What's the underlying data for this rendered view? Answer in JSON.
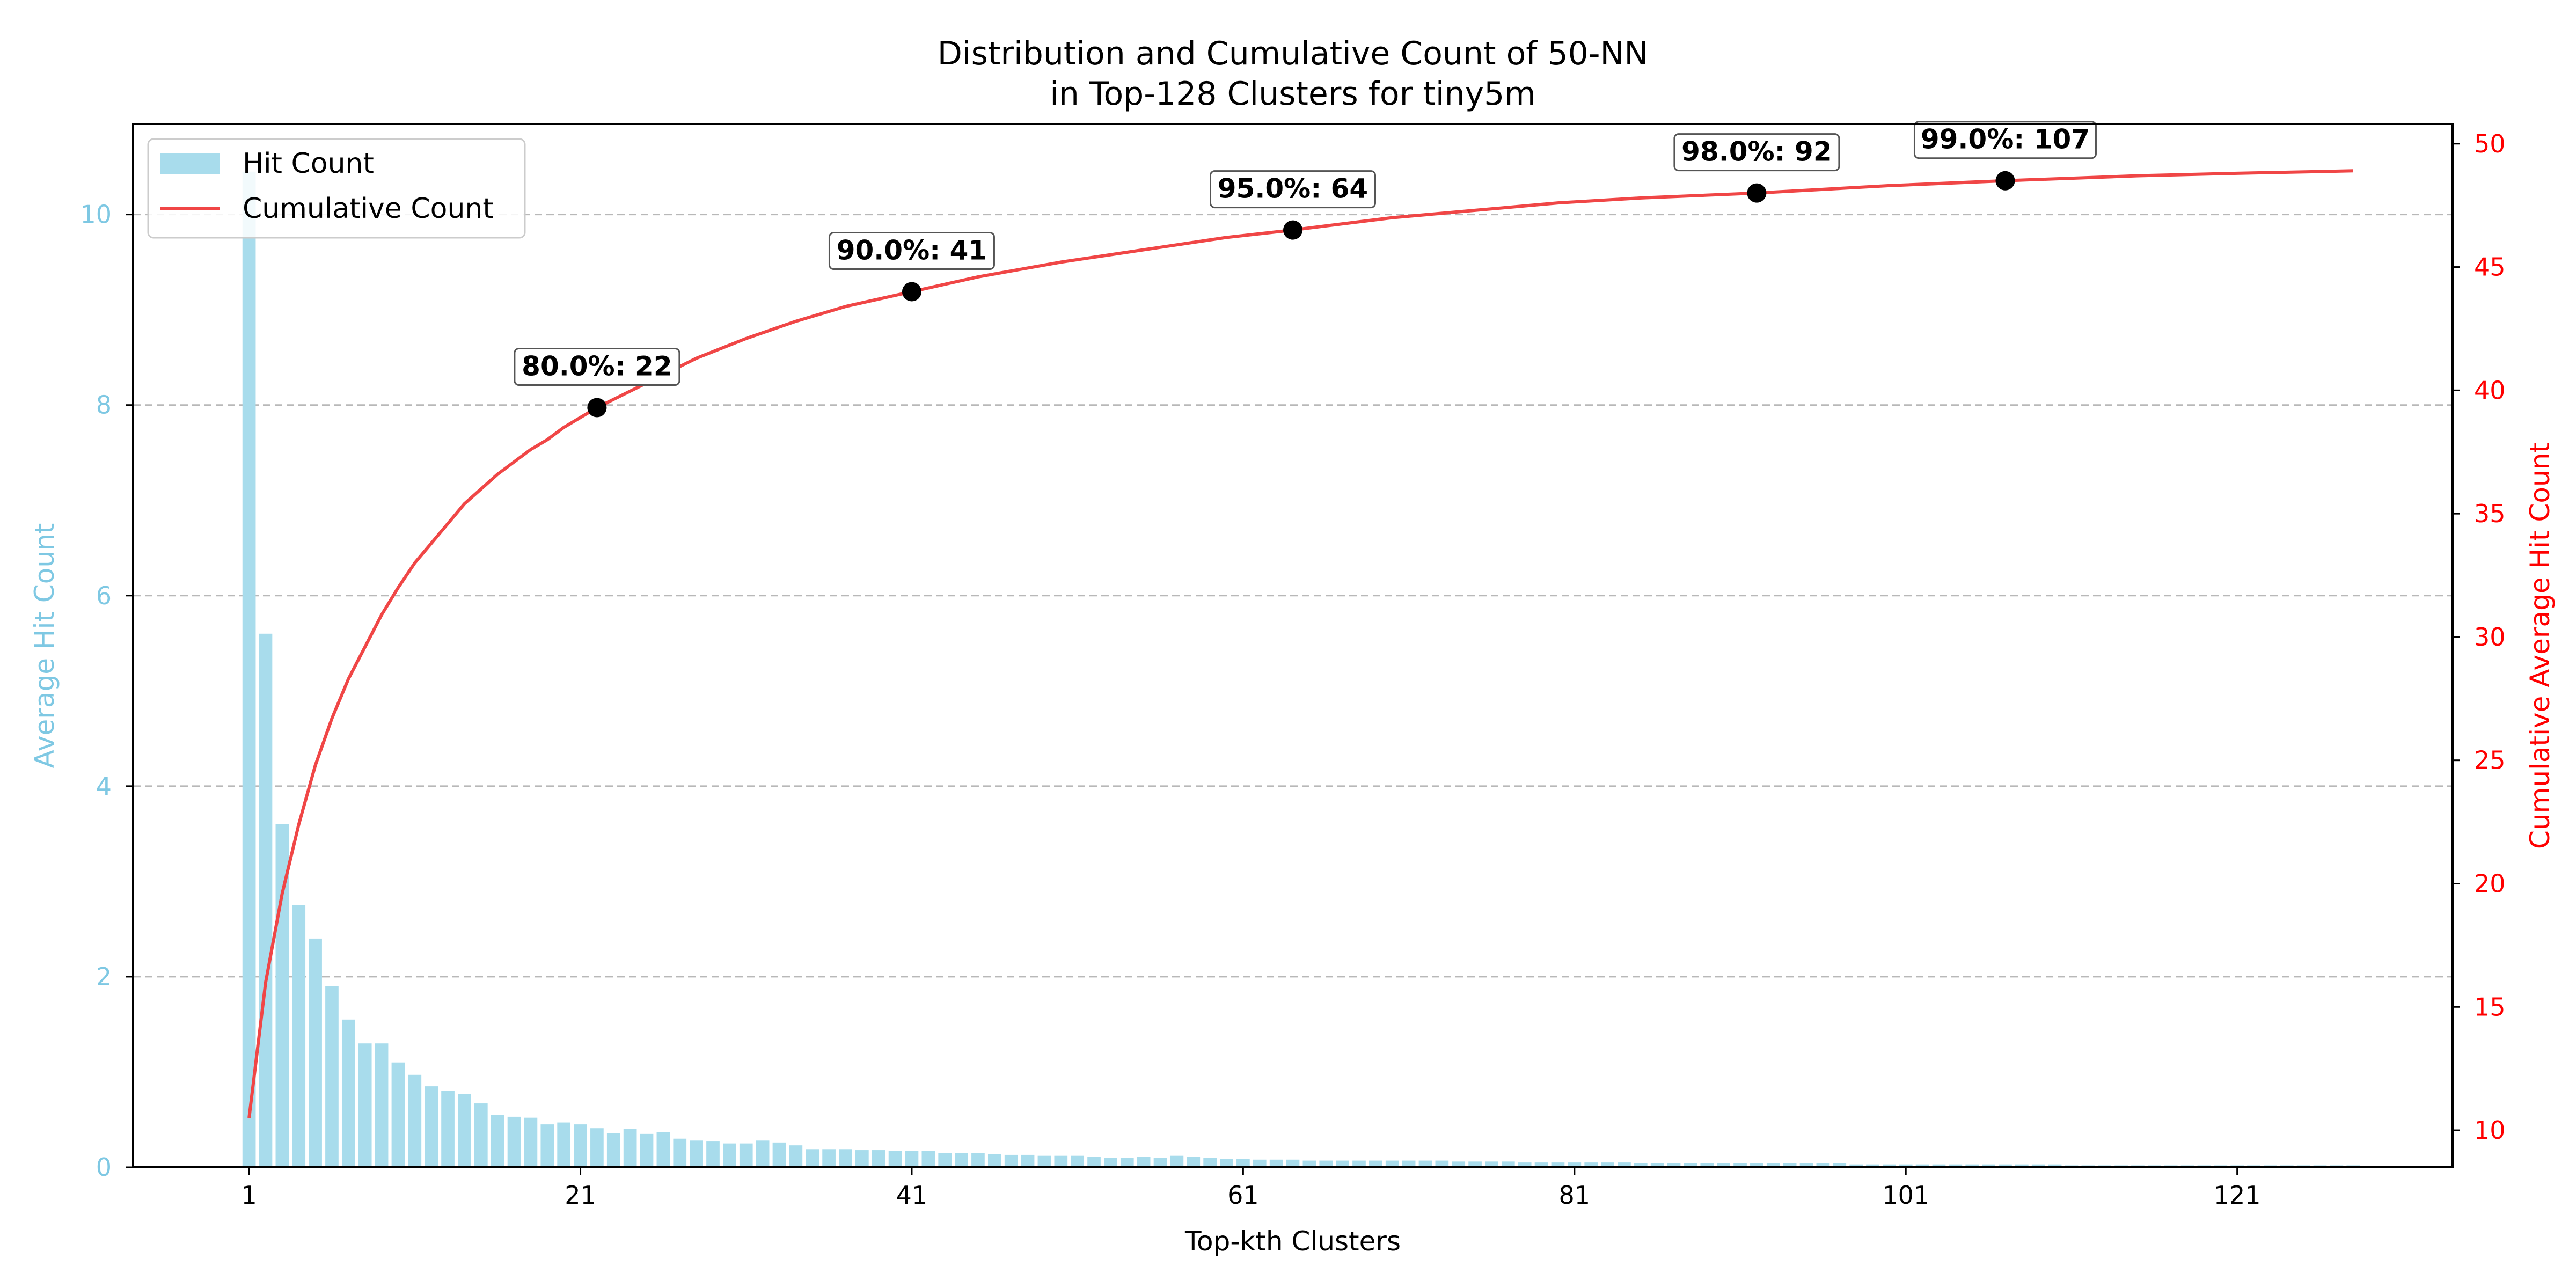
{
  "chart_data": {
    "type": "bar",
    "title_line1": "Distribution and Cumulative Count of 50-NN",
    "title_line2": "in Top-128 Clusters for tiny5m",
    "xlabel": "Top-kth Clusters",
    "ylabel_left": "Average Hit Count",
    "ylabel_right": "Cumulative Average Hit Count",
    "x_ticks": [
      1,
      21,
      41,
      61,
      81,
      101,
      121
    ],
    "y_left_ticks": [
      0,
      2,
      4,
      6,
      8,
      10
    ],
    "y_right_ticks": [
      10,
      15,
      20,
      25,
      30,
      35,
      40,
      45,
      50
    ],
    "xlim": [
      -6,
      134
    ],
    "ylim_left": [
      0,
      10.95
    ],
    "ylim_right": [
      8.5,
      50.8
    ],
    "grid": "horizontal dashed",
    "legend_position": "top-left",
    "colors": {
      "bars": "#a8dcec",
      "line": "#f04646",
      "left_axis": "#7ec8e3",
      "right_axis": "#ff0000",
      "markers": "#000000"
    },
    "series": [
      {
        "name": "Hit Count",
        "kind": "bar",
        "x_start": 1,
        "values": [
          10.45,
          5.6,
          3.6,
          2.75,
          2.4,
          1.9,
          1.55,
          1.3,
          1.3,
          1.1,
          0.97,
          0.85,
          0.8,
          0.77,
          0.67,
          0.55,
          0.53,
          0.52,
          0.45,
          0.47,
          0.45,
          0.41,
          0.36,
          0.4,
          0.35,
          0.37,
          0.3,
          0.28,
          0.27,
          0.25,
          0.25,
          0.28,
          0.26,
          0.23,
          0.19,
          0.19,
          0.19,
          0.18,
          0.18,
          0.17,
          0.17,
          0.17,
          0.15,
          0.15,
          0.15,
          0.14,
          0.13,
          0.13,
          0.12,
          0.12,
          0.12,
          0.11,
          0.1,
          0.1,
          0.11,
          0.1,
          0.12,
          0.11,
          0.1,
          0.09,
          0.09,
          0.08,
          0.08,
          0.08,
          0.07,
          0.07,
          0.07,
          0.07,
          0.07,
          0.07,
          0.07,
          0.07,
          0.07,
          0.06,
          0.06,
          0.06,
          0.06,
          0.05,
          0.05,
          0.05,
          0.05,
          0.05,
          0.05,
          0.05,
          0.04,
          0.04,
          0.04,
          0.04,
          0.04,
          0.04,
          0.04,
          0.04,
          0.04,
          0.04,
          0.04,
          0.04,
          0.04,
          0.03,
          0.03,
          0.03,
          0.03,
          0.03,
          0.03,
          0.03,
          0.03,
          0.03,
          0.03,
          0.03,
          0.03,
          0.03,
          0.02,
          0.02,
          0.02,
          0.02,
          0.02,
          0.02,
          0.02,
          0.02,
          0.02,
          0.02,
          0.02,
          0.02,
          0.02,
          0.02,
          0.02,
          0.02,
          0.02,
          0.02
        ]
      },
      {
        "name": "Cumulative Count",
        "kind": "line",
        "axis": "right",
        "x": [
          1,
          2,
          3,
          4,
          5,
          6,
          7,
          8,
          9,
          10,
          11,
          12,
          13,
          14,
          15,
          16,
          17,
          18,
          19,
          20,
          21,
          22,
          25,
          28,
          31,
          34,
          37,
          41,
          45,
          50,
          55,
          60,
          64,
          70,
          75,
          80,
          85,
          92,
          100,
          107,
          115,
          121,
          128
        ],
        "values": [
          10.5,
          16.0,
          19.6,
          22.4,
          24.8,
          26.7,
          28.3,
          29.6,
          30.9,
          32.0,
          33.0,
          33.8,
          34.6,
          35.4,
          36.0,
          36.6,
          37.1,
          37.6,
          38.0,
          38.5,
          38.9,
          39.3,
          40.3,
          41.3,
          42.1,
          42.8,
          43.4,
          44.0,
          44.6,
          45.2,
          45.7,
          46.2,
          46.5,
          47.0,
          47.3,
          47.6,
          47.8,
          48.0,
          48.3,
          48.5,
          48.7,
          48.8,
          48.9
        ]
      }
    ],
    "annotations": [
      {
        "label": "80.0%: 22",
        "x": 22,
        "y": 39.3
      },
      {
        "label": "90.0%: 41",
        "x": 41,
        "y": 44.0
      },
      {
        "label": "95.0%: 64",
        "x": 64,
        "y": 46.5
      },
      {
        "label": "98.0%: 92",
        "x": 92,
        "y": 48.0
      },
      {
        "label": "99.0%: 107",
        "x": 107,
        "y": 48.5
      }
    ]
  }
}
